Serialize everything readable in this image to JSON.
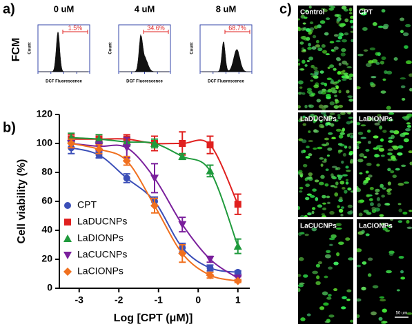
{
  "panel_labels": [
    "a)",
    "b)",
    "c)"
  ],
  "fcm": {
    "row_label": "FCM",
    "y_label": "Count",
    "x_label": "DCF Fluorescence",
    "panels": [
      {
        "title": "0 uM",
        "gate": "1.5%"
      },
      {
        "title": "4 uM",
        "gate": "34.6%"
      },
      {
        "title": "8 uM",
        "gate": "68.7%"
      }
    ]
  },
  "chart_data": {
    "type": "line",
    "x_label": "Log [CPT (μM)]",
    "y_label": "Cell viability (%)",
    "x": [
      -3.2,
      -2.5,
      -1.8,
      -1.1,
      -0.4,
      0.3,
      1.0
    ],
    "xlim": [
      -3.5,
      1.3
    ],
    "xticks": [
      -3,
      -2,
      -1,
      0,
      1
    ],
    "ylim": [
      0,
      120
    ],
    "yticks": [
      0,
      20,
      40,
      60,
      80,
      100,
      120
    ],
    "legend": "lower left",
    "series": [
      {
        "name": "CPT",
        "color": "#3b4fb8",
        "marker": "circle",
        "values": [
          97,
          92,
          76,
          60,
          28,
          14,
          11
        ],
        "errors": [
          4,
          2,
          3,
          3,
          3,
          2,
          1
        ]
      },
      {
        "name": "LaDUCNPs",
        "color": "#e0201f",
        "marker": "square",
        "values": [
          103,
          103,
          103,
          100,
          100,
          99,
          58
        ],
        "errors": [
          3,
          3,
          3,
          5,
          8,
          6,
          7
        ]
      },
      {
        "name": "LaDIONPs",
        "color": "#1f9a3c",
        "marker": "triangle-up",
        "values": [
          104,
          103,
          101,
          100,
          91,
          81,
          29
        ],
        "errors": [
          3,
          3,
          3,
          3,
          2,
          4,
          5
        ]
      },
      {
        "name": "LaCUCNPs",
        "color": "#7a1f9c",
        "marker": "triangle-down",
        "values": [
          100,
          98,
          97,
          76,
          44,
          20,
          7
        ],
        "errors": [
          3,
          3,
          7,
          10,
          5,
          2,
          1
        ]
      },
      {
        "name": "LaCIONPs",
        "color": "#f0701f",
        "marker": "diamond",
        "values": [
          100,
          96,
          88,
          57,
          24,
          9,
          5
        ],
        "errors": [
          3,
          3,
          3,
          5,
          6,
          2,
          1
        ]
      }
    ]
  },
  "micrographs": {
    "labels": [
      "Control",
      "CPT",
      "LaDUCNPs",
      "LaDIONPs",
      "LaCUCNPs",
      "LaCIONPs"
    ],
    "scale_bar": "50 um"
  }
}
